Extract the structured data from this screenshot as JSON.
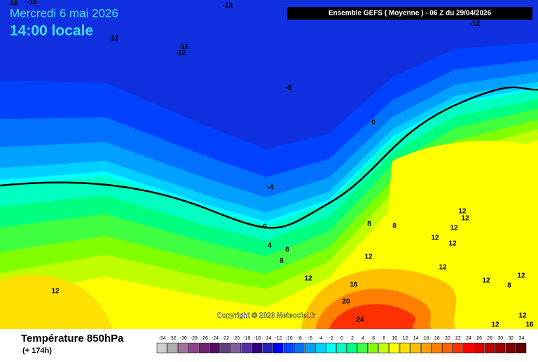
{
  "header": {
    "date": "Mercredi 6 mai 2026",
    "time": "14:00 locale",
    "run": "Ensemble GEFS  ( Moyenne )  -  06 Z du 29/04/2026"
  },
  "copyright": "Copyright © 2026 Meteociel.fr",
  "footer": {
    "title": "Température 850hPa",
    "lead": "(+ 174h)"
  },
  "legend": {
    "values": [
      -34,
      -32,
      -30,
      -28,
      -26,
      -24,
      -22,
      -20,
      -18,
      -16,
      -14,
      -12,
      -10,
      -8,
      -6,
      -4,
      -2,
      0,
      2,
      4,
      6,
      8,
      10,
      12,
      14,
      16,
      18,
      20,
      22,
      24,
      26,
      28,
      30,
      32,
      34
    ],
    "colors": [
      "#d0d0d0",
      "#b0b0b0",
      "#a070a0",
      "#904090",
      "#702070",
      "#501060",
      "#604080",
      "#8060a0",
      "#5030a0",
      "#300080",
      "#2020c0",
      "#0000ff",
      "#0040ff",
      "#0070ff",
      "#00a0ff",
      "#00d0ff",
      "#00ffff",
      "#00ffc0",
      "#00ff80",
      "#40ff40",
      "#80ff00",
      "#c0ff00",
      "#ffff00",
      "#ffe000",
      "#ffc000",
      "#ffa000",
      "#ff8000",
      "#ff6000",
      "#ff3000",
      "#ff0000",
      "#e00000",
      "#c00000",
      "#a00000",
      "#800000",
      "#600000"
    ]
  },
  "contour_labels": [
    -16,
    -16,
    -12,
    -12,
    -12,
    -12,
    -12,
    -8,
    0,
    -4,
    0,
    4,
    8,
    8,
    8,
    8,
    12,
    12,
    12,
    12,
    12,
    12,
    12,
    12,
    12,
    16,
    20,
    24,
    12,
    8,
    12,
    12,
    12,
    16
  ]
}
